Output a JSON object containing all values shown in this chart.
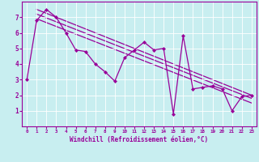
{
  "xlabel": "Windchill (Refroidissement éolien,°C)",
  "background_color": "#c8eef0",
  "line_color": "#990099",
  "xlim": [
    -0.5,
    23.5
  ],
  "ylim": [
    0,
    8
  ],
  "xticks": [
    0,
    1,
    2,
    3,
    4,
    5,
    6,
    7,
    8,
    9,
    10,
    11,
    12,
    13,
    14,
    15,
    16,
    17,
    18,
    19,
    20,
    21,
    22,
    23
  ],
  "yticks": [
    1,
    2,
    3,
    4,
    5,
    6,
    7
  ],
  "series1_x": [
    0,
    1,
    2,
    3,
    4,
    5,
    6,
    7,
    8,
    9,
    10,
    11,
    12,
    13,
    14,
    15,
    16,
    17,
    18,
    19,
    20,
    21,
    22,
    23
  ],
  "series1_y": [
    3.0,
    6.8,
    7.5,
    7.0,
    6.0,
    4.9,
    4.8,
    4.0,
    3.5,
    2.9,
    4.4,
    4.9,
    5.4,
    4.9,
    5.0,
    0.8,
    5.8,
    2.4,
    2.5,
    2.6,
    2.4,
    1.0,
    1.9,
    2.0
  ],
  "series2_x": [
    1,
    23
  ],
  "series2_y": [
    7.5,
    2.0
  ],
  "series3_x": [
    1,
    23
  ],
  "series3_y": [
    7.2,
    1.8
  ],
  "series4_x": [
    1,
    23
  ],
  "series4_y": [
    6.9,
    1.5
  ]
}
